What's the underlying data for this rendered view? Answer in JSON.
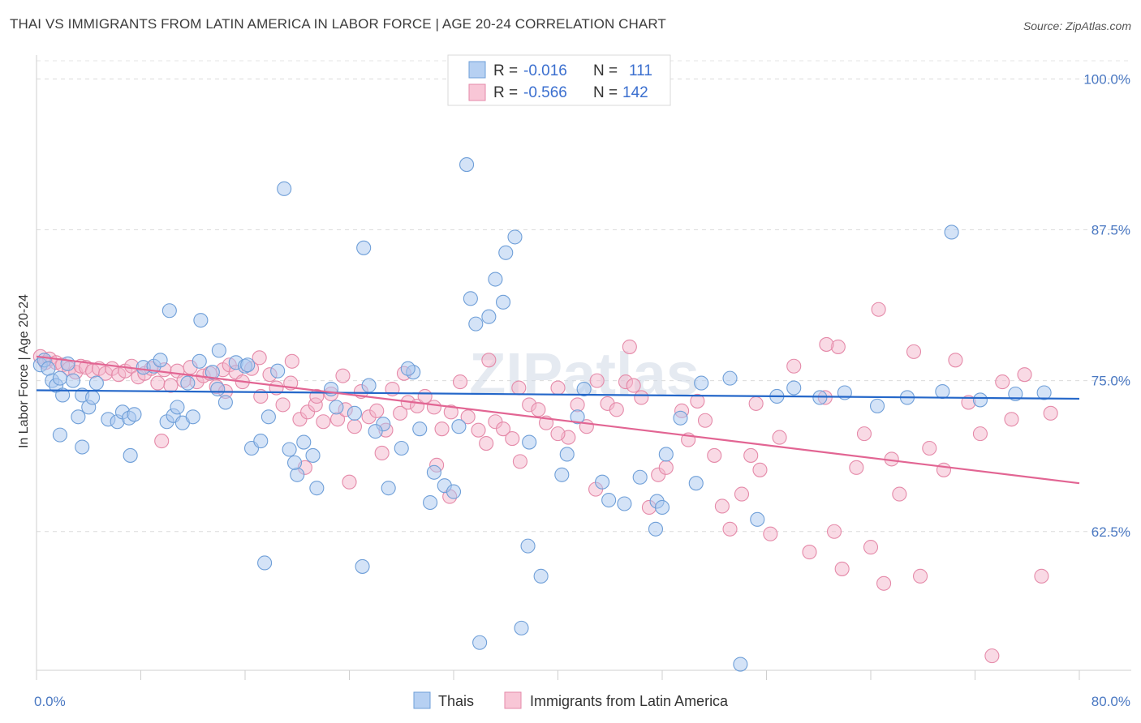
{
  "title": "THAI VS IMMIGRANTS FROM LATIN AMERICA IN LABOR FORCE | AGE 20-24 CORRELATION CHART",
  "source": "Source: ZipAtlas.com",
  "watermark": "ZIPatlas",
  "chart_data": {
    "type": "scatter",
    "ylabel": "In Labor Force | Age 20-24",
    "xlim": [
      0,
      80
    ],
    "ylim": [
      51,
      101.5
    ],
    "x_tick_labels": [
      "0.0%",
      "80.0%"
    ],
    "y_ticks": [
      62.5,
      75.0,
      87.5,
      100.0
    ],
    "y_tick_labels": [
      "62.5%",
      "75.0%",
      "87.5%",
      "100.0%"
    ],
    "grid": "horizontal dashed",
    "legend_placement": "top-center",
    "legend": [
      {
        "r_label": "R =",
        "r_value": "-0.016",
        "n_label": "N =",
        "n_value": "111"
      },
      {
        "r_label": "R =",
        "r_value": "-0.566",
        "n_label": "N =",
        "n_value": "142"
      }
    ],
    "series": [
      {
        "name": "Thais",
        "color": "#a9c8ef",
        "stroke": "#6f9fd8",
        "trend_color": "#2467c9",
        "trend": {
          "x0": 0,
          "y0": 74.2,
          "x1": 80,
          "y1": 73.5
        },
        "points": [
          [
            0.3,
            76.3
          ],
          [
            0.6,
            76.7
          ],
          [
            0.9,
            76.0
          ],
          [
            1.2,
            75.0
          ],
          [
            1.5,
            74.6
          ],
          [
            1.8,
            75.2
          ],
          [
            2.0,
            73.8
          ],
          [
            2.4,
            76.4
          ],
          [
            2.8,
            75.0
          ],
          [
            3.2,
            72.0
          ],
          [
            3.5,
            73.8
          ],
          [
            4.0,
            72.8
          ],
          [
            4.3,
            73.6
          ],
          [
            4.6,
            74.8
          ],
          [
            5.5,
            71.8
          ],
          [
            6.2,
            71.6
          ],
          [
            6.6,
            72.4
          ],
          [
            7.1,
            71.9
          ],
          [
            7.5,
            72.2
          ],
          [
            8.2,
            76.1
          ],
          [
            9.0,
            76.2
          ],
          [
            9.5,
            76.7
          ],
          [
            10.0,
            71.6
          ],
          [
            10.5,
            72.1
          ],
          [
            10.8,
            72.8
          ],
          [
            11.2,
            71.5
          ],
          [
            11.6,
            74.8
          ],
          [
            12.0,
            72.0
          ],
          [
            12.5,
            76.6
          ],
          [
            13.5,
            75.7
          ],
          [
            14.0,
            77.5
          ],
          [
            14.5,
            73.2
          ],
          [
            15.3,
            76.5
          ],
          [
            16.0,
            76.2
          ],
          [
            16.5,
            69.4
          ],
          [
            17.2,
            70.0
          ],
          [
            17.8,
            72.0
          ],
          [
            18.5,
            75.8
          ],
          [
            19.4,
            69.3
          ],
          [
            20.0,
            67.2
          ],
          [
            21.2,
            68.8
          ],
          [
            22.6,
            74.3
          ],
          [
            23.0,
            72.8
          ],
          [
            24.4,
            72.3
          ],
          [
            25.5,
            74.6
          ],
          [
            26.6,
            71.4
          ],
          [
            27.0,
            66.1
          ],
          [
            28.0,
            69.4
          ],
          [
            28.9,
            75.7
          ],
          [
            29.4,
            71.0
          ],
          [
            30.5,
            67.4
          ],
          [
            31.3,
            66.3
          ],
          [
            32.0,
            65.8
          ],
          [
            33.3,
            81.8
          ],
          [
            33.7,
            79.7
          ],
          [
            34.7,
            80.3
          ],
          [
            35.2,
            83.4
          ],
          [
            35.8,
            81.5
          ],
          [
            36.0,
            85.6
          ],
          [
            36.7,
            86.9
          ],
          [
            37.8,
            69.9
          ],
          [
            38.7,
            58.8
          ],
          [
            40.7,
            68.9
          ],
          [
            42.0,
            74.3
          ],
          [
            43.4,
            66.6
          ],
          [
            45.1,
            64.8
          ],
          [
            47.5,
            62.7
          ],
          [
            47.6,
            65.0
          ],
          [
            48.3,
            68.9
          ],
          [
            49.4,
            71.9
          ],
          [
            51.0,
            74.8
          ],
          [
            55.3,
            63.5
          ],
          [
            54.0,
            51.5
          ],
          [
            58.1,
            74.4
          ],
          [
            60.1,
            73.6
          ],
          [
            70.2,
            87.3
          ],
          [
            1.8,
            70.5
          ],
          [
            3.5,
            69.5
          ],
          [
            7.2,
            68.8
          ],
          [
            10.2,
            80.8
          ],
          [
            12.6,
            80.0
          ],
          [
            13.9,
            74.3
          ],
          [
            16.2,
            76.3
          ],
          [
            17.5,
            59.9
          ],
          [
            19.8,
            68.2
          ],
          [
            20.5,
            69.9
          ],
          [
            21.5,
            66.1
          ],
          [
            25.0,
            59.6
          ],
          [
            26.0,
            70.8
          ],
          [
            28.5,
            76.0
          ],
          [
            30.2,
            64.9
          ],
          [
            32.4,
            71.2
          ],
          [
            33.0,
            92.9
          ],
          [
            34.0,
            53.3
          ],
          [
            37.2,
            54.5
          ],
          [
            37.7,
            61.3
          ],
          [
            40.3,
            67.2
          ],
          [
            41.5,
            72.0
          ],
          [
            43.9,
            65.1
          ],
          [
            46.3,
            67.0
          ],
          [
            48.0,
            64.5
          ],
          [
            50.6,
            66.5
          ],
          [
            53.2,
            75.2
          ],
          [
            56.8,
            73.7
          ],
          [
            62.0,
            74.0
          ],
          [
            64.5,
            72.9
          ],
          [
            66.8,
            73.6
          ],
          [
            69.5,
            74.1
          ],
          [
            72.4,
            73.4
          ],
          [
            75.1,
            73.9
          ],
          [
            77.3,
            74.0
          ],
          [
            19.0,
            90.9
          ],
          [
            25.1,
            86.0
          ]
        ]
      },
      {
        "name": "Immigrants from Latin America",
        "color": "#f4b6cb",
        "stroke": "#e58aa9",
        "trend_color": "#e26593",
        "trend": {
          "x0": 0,
          "y0": 77.0,
          "x1": 80,
          "y1": 66.5
        },
        "points": [
          [
            0.3,
            77.0
          ],
          [
            0.7,
            76.5
          ],
          [
            1.0,
            76.8
          ],
          [
            1.5,
            76.5
          ],
          [
            2.0,
            76.3
          ],
          [
            2.5,
            76.0
          ],
          [
            3.0,
            75.7
          ],
          [
            3.4,
            76.2
          ],
          [
            3.8,
            76.1
          ],
          [
            4.3,
            75.8
          ],
          [
            4.8,
            76.0
          ],
          [
            5.3,
            75.6
          ],
          [
            5.8,
            76.0
          ],
          [
            6.3,
            75.5
          ],
          [
            6.8,
            75.8
          ],
          [
            7.3,
            76.2
          ],
          [
            7.8,
            75.3
          ],
          [
            8.3,
            75.6
          ],
          [
            8.8,
            76.0
          ],
          [
            9.3,
            74.8
          ],
          [
            9.8,
            75.9
          ],
          [
            10.3,
            74.6
          ],
          [
            10.8,
            75.8
          ],
          [
            11.3,
            75.0
          ],
          [
            11.8,
            76.1
          ],
          [
            12.3,
            74.9
          ],
          [
            12.8,
            75.4
          ],
          [
            13.3,
            75.6
          ],
          [
            13.8,
            74.5
          ],
          [
            14.3,
            75.9
          ],
          [
            14.8,
            76.3
          ],
          [
            15.3,
            75.7
          ],
          [
            15.8,
            74.9
          ],
          [
            16.5,
            76.0
          ],
          [
            17.2,
            73.7
          ],
          [
            17.9,
            75.5
          ],
          [
            18.4,
            74.4
          ],
          [
            18.9,
            73.0
          ],
          [
            19.5,
            74.8
          ],
          [
            20.2,
            71.8
          ],
          [
            20.8,
            72.4
          ],
          [
            21.4,
            73.0
          ],
          [
            22.0,
            71.6
          ],
          [
            22.6,
            73.9
          ],
          [
            23.1,
            71.8
          ],
          [
            23.7,
            72.6
          ],
          [
            24.4,
            71.2
          ],
          [
            24.9,
            74.1
          ],
          [
            25.5,
            72.0
          ],
          [
            26.1,
            72.5
          ],
          [
            26.8,
            70.9
          ],
          [
            27.3,
            74.3
          ],
          [
            27.9,
            72.3
          ],
          [
            28.5,
            73.2
          ],
          [
            29.2,
            72.9
          ],
          [
            29.8,
            73.7
          ],
          [
            30.5,
            72.8
          ],
          [
            31.1,
            71.0
          ],
          [
            31.8,
            72.4
          ],
          [
            32.5,
            74.9
          ],
          [
            33.1,
            72.0
          ],
          [
            33.9,
            70.9
          ],
          [
            34.5,
            69.8
          ],
          [
            35.2,
            71.6
          ],
          [
            35.8,
            71.0
          ],
          [
            36.5,
            70.2
          ],
          [
            37.1,
            68.3
          ],
          [
            37.8,
            73.0
          ],
          [
            38.5,
            72.6
          ],
          [
            39.1,
            71.5
          ],
          [
            40.0,
            74.4
          ],
          [
            40.8,
            70.3
          ],
          [
            41.5,
            73.0
          ],
          [
            42.2,
            71.2
          ],
          [
            43.0,
            75.0
          ],
          [
            43.8,
            73.1
          ],
          [
            44.5,
            72.6
          ],
          [
            45.2,
            74.9
          ],
          [
            45.8,
            74.6
          ],
          [
            46.4,
            73.6
          ],
          [
            47.0,
            64.5
          ],
          [
            47.7,
            67.2
          ],
          [
            48.3,
            67.8
          ],
          [
            49.5,
            72.5
          ],
          [
            50.0,
            70.1
          ],
          [
            50.7,
            73.3
          ],
          [
            51.3,
            71.7
          ],
          [
            52.0,
            68.8
          ],
          [
            52.6,
            64.6
          ],
          [
            53.2,
            62.7
          ],
          [
            54.1,
            65.6
          ],
          [
            54.8,
            68.8
          ],
          [
            55.5,
            67.6
          ],
          [
            56.3,
            62.3
          ],
          [
            57.0,
            70.3
          ],
          [
            58.1,
            76.2
          ],
          [
            59.3,
            60.8
          ],
          [
            60.5,
            73.6
          ],
          [
            61.2,
            62.5
          ],
          [
            61.8,
            59.4
          ],
          [
            62.9,
            67.8
          ],
          [
            63.5,
            70.6
          ],
          [
            64.0,
            61.2
          ],
          [
            65.0,
            58.2
          ],
          [
            65.6,
            68.5
          ],
          [
            66.2,
            65.6
          ],
          [
            67.3,
            77.4
          ],
          [
            67.8,
            58.8
          ],
          [
            68.5,
            69.4
          ],
          [
            69.6,
            67.6
          ],
          [
            70.5,
            76.7
          ],
          [
            71.5,
            73.2
          ],
          [
            72.4,
            70.6
          ],
          [
            73.3,
            52.2
          ],
          [
            74.1,
            74.9
          ],
          [
            74.8,
            71.8
          ],
          [
            75.8,
            75.5
          ],
          [
            77.1,
            58.8
          ],
          [
            77.8,
            72.3
          ],
          [
            61.5,
            77.8
          ],
          [
            64.6,
            80.9
          ],
          [
            60.6,
            78.0
          ],
          [
            34.7,
            76.7
          ],
          [
            40.0,
            70.6
          ],
          [
            20.6,
            67.8
          ],
          [
            17.1,
            76.9
          ],
          [
            9.6,
            70.0
          ],
          [
            45.5,
            77.8
          ],
          [
            55.2,
            73.1
          ],
          [
            37.0,
            74.4
          ],
          [
            24.0,
            66.6
          ],
          [
            30.7,
            68.0
          ],
          [
            31.7,
            65.4
          ],
          [
            42.9,
            66.0
          ],
          [
            14.5,
            74.1
          ],
          [
            19.6,
            76.6
          ],
          [
            21.5,
            73.7
          ],
          [
            23.5,
            75.4
          ],
          [
            26.5,
            69.0
          ],
          [
            28.2,
            75.6
          ]
        ]
      }
    ]
  }
}
